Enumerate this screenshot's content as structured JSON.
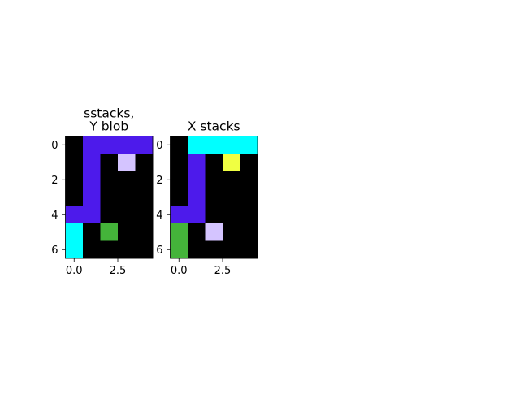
{
  "chart_data": [
    {
      "type": "heatmap",
      "title": "sstacks,\nY blob",
      "rows": 7,
      "cols": 5,
      "xticks": [
        {
          "value": 0.0,
          "label": "0.0"
        },
        {
          "value": 2.5,
          "label": "2.5"
        }
      ],
      "yticks": [
        {
          "value": 0,
          "label": "0"
        },
        {
          "value": 2,
          "label": "2"
        },
        {
          "value": 4,
          "label": "4"
        },
        {
          "value": 6,
          "label": "6"
        }
      ],
      "grid": [
        [
          "black",
          "blue",
          "blue",
          "blue",
          "blue"
        ],
        [
          "black",
          "blue",
          "black",
          "lavender",
          "black"
        ],
        [
          "black",
          "blue",
          "black",
          "black",
          "black"
        ],
        [
          "black",
          "blue",
          "black",
          "black",
          "black"
        ],
        [
          "blue",
          "blue",
          "black",
          "black",
          "black"
        ],
        [
          "cyan",
          "black",
          "green",
          "black",
          "black"
        ],
        [
          "cyan",
          "black",
          "black",
          "black",
          "black"
        ]
      ]
    },
    {
      "type": "heatmap",
      "title": "X stacks",
      "rows": 7,
      "cols": 5,
      "xticks": [
        {
          "value": 0.0,
          "label": "0.0"
        },
        {
          "value": 2.5,
          "label": "2.5"
        }
      ],
      "yticks": [
        {
          "value": 0,
          "label": "0"
        },
        {
          "value": 2,
          "label": "2"
        },
        {
          "value": 4,
          "label": "4"
        },
        {
          "value": 6,
          "label": "6"
        }
      ],
      "grid": [
        [
          "black",
          "cyan",
          "cyan",
          "cyan",
          "cyan"
        ],
        [
          "black",
          "blue",
          "black",
          "yellow",
          "black"
        ],
        [
          "black",
          "blue",
          "black",
          "black",
          "black"
        ],
        [
          "black",
          "blue",
          "black",
          "black",
          "black"
        ],
        [
          "blue",
          "blue",
          "black",
          "black",
          "black"
        ],
        [
          "green",
          "black",
          "lavender",
          "black",
          "black"
        ],
        [
          "green",
          "black",
          "black",
          "black",
          "black"
        ]
      ]
    }
  ],
  "colors": {
    "black": "#000000",
    "blue": "#4d1aeb",
    "cyan": "#00ffff",
    "lavender": "#d4c4ff",
    "yellow": "#f0ff42",
    "green": "#44b43a"
  }
}
